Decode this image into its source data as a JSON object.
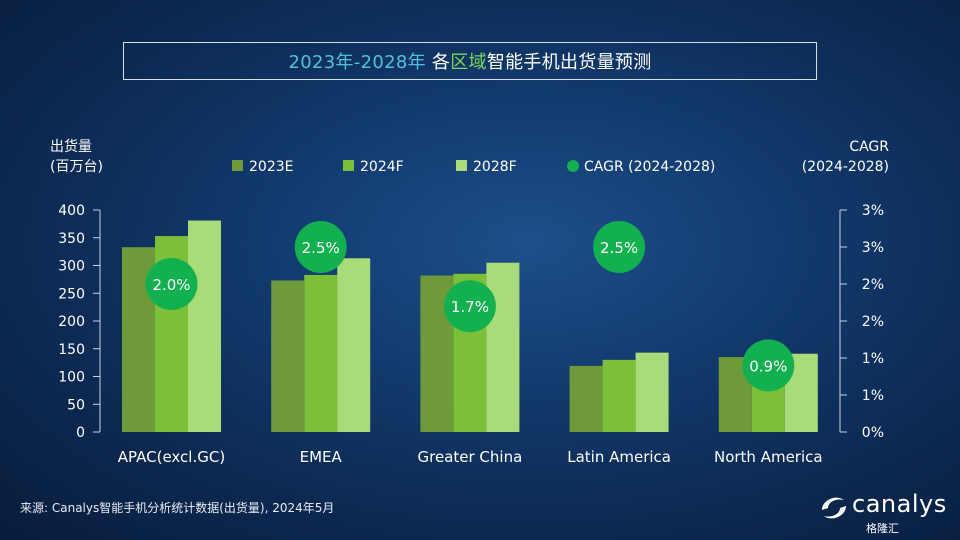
{
  "title": {
    "part1": "2023年-2028年",
    "part2": "各",
    "part3": "区域",
    "part4": "智能手机出货量预测"
  },
  "left_axis_label": [
    "出货量",
    "(百万台)"
  ],
  "right_axis_label": [
    "CAGR",
    "(2024-2028)"
  ],
  "source": "来源: Canalys智能手机分析统计数据(出货量), 2024年5月",
  "logo_text": "canalys",
  "watermark_text": "格隆汇",
  "colors": {
    "2023E": "#6e9a3a",
    "2024F": "#7cc03a",
    "2028F": "#a8dc78",
    "CAGR": "#13b050"
  },
  "chart_data": {
    "type": "bar",
    "categories": [
      "APAC(excl.GC)",
      "EMEA",
      "Greater China",
      "Latin America",
      "North America"
    ],
    "series": [
      {
        "name": "2023E",
        "values": [
          333,
          273,
          282,
          119,
          135
        ]
      },
      {
        "name": "2024F",
        "values": [
          353,
          283,
          285,
          130,
          137
        ]
      },
      {
        "name": "2028F",
        "values": [
          381,
          313,
          305,
          143,
          141
        ]
      }
    ],
    "cagr": {
      "name": "CAGR (2024-2028)",
      "values": [
        2.0,
        2.5,
        1.7,
        2.5,
        0.9
      ],
      "labels": [
        "2.0%",
        "2.5%",
        "1.7%",
        "2.5%",
        "0.9%"
      ]
    },
    "ylim": [
      0,
      400
    ],
    "yticks": [
      0,
      50,
      100,
      150,
      200,
      250,
      300,
      350,
      400
    ],
    "y2lim": [
      0,
      3
    ],
    "y2ticks": [
      "0%",
      "1%",
      "1%",
      "2%",
      "2%",
      "3%",
      "3%"
    ],
    "legend": [
      "2023E",
      "2024F",
      "2028F",
      "CAGR (2024-2028)"
    ],
    "legend_position": "top"
  }
}
